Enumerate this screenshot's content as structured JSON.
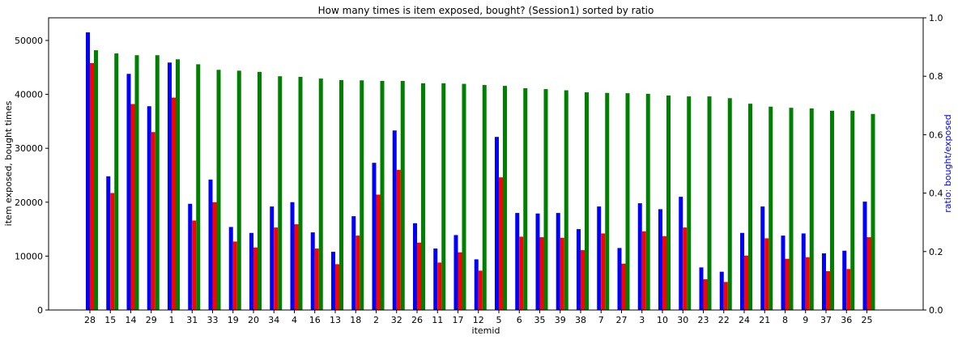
{
  "chart_data": {
    "type": "bar",
    "title": "How many times is item exposed, bought? (Session1) sorted by ratio",
    "xlabel": "itemid",
    "ylabel": "item exposed, bought times",
    "y2label": "ratio: bought/exposed",
    "y2label_color": "#0000ff",
    "ylim": [
      0,
      54200
    ],
    "y2lim": [
      0,
      1
    ],
    "yticks": [
      0,
      10000,
      20000,
      30000,
      40000,
      50000
    ],
    "y2ticks": [
      0.0,
      0.2,
      0.4,
      0.6,
      0.8,
      1.0
    ],
    "grid": false,
    "legend": "none",
    "categories": [
      "28",
      "15",
      "14",
      "29",
      "1",
      "31",
      "33",
      "19",
      "20",
      "34",
      "4",
      "16",
      "13",
      "18",
      "2",
      "32",
      "26",
      "11",
      "17",
      "12",
      "5",
      "6",
      "35",
      "39",
      "38",
      "7",
      "27",
      "3",
      "10",
      "30",
      "23",
      "22",
      "24",
      "21",
      "8",
      "9",
      "37",
      "36",
      "25"
    ],
    "series": [
      {
        "axis": "left",
        "color": "#0000ff",
        "values": [
          51500,
          24800,
          43800,
          37800,
          45900,
          19700,
          24200,
          15400,
          14300,
          19200,
          20000,
          14400,
          10800,
          17400,
          27300,
          33300,
          16100,
          11400,
          13900,
          9400,
          32100,
          18000,
          17900,
          18000,
          15000,
          19200,
          11500,
          19800,
          18700,
          21000,
          7900,
          7100,
          14300,
          19200,
          13800,
          14200,
          10500,
          11000,
          20100
        ]
      },
      {
        "axis": "left",
        "color": "#ff0000",
        "values": [
          45800,
          21700,
          38200,
          33000,
          39400,
          16600,
          20000,
          12700,
          11600,
          15300,
          15900,
          11400,
          8500,
          13800,
          21400,
          26000,
          12500,
          8800,
          10700,
          7300,
          24600,
          13600,
          13500,
          13400,
          11100,
          14200,
          8600,
          14600,
          13700,
          15300,
          5700,
          5200,
          10100,
          13300,
          9500,
          9800,
          7200,
          7600,
          13500
        ]
      },
      {
        "axis": "right",
        "color": "#008000",
        "values": [
          0.889,
          0.878,
          0.872,
          0.872,
          0.858,
          0.841,
          0.822,
          0.819,
          0.815,
          0.8,
          0.798,
          0.792,
          0.787,
          0.786,
          0.784,
          0.784,
          0.776,
          0.776,
          0.774,
          0.77,
          0.767,
          0.759,
          0.756,
          0.752,
          0.745,
          0.743,
          0.742,
          0.74,
          0.734,
          0.731,
          0.731,
          0.725,
          0.706,
          0.696,
          0.692,
          0.69,
          0.682,
          0.682,
          0.671
        ]
      }
    ]
  }
}
